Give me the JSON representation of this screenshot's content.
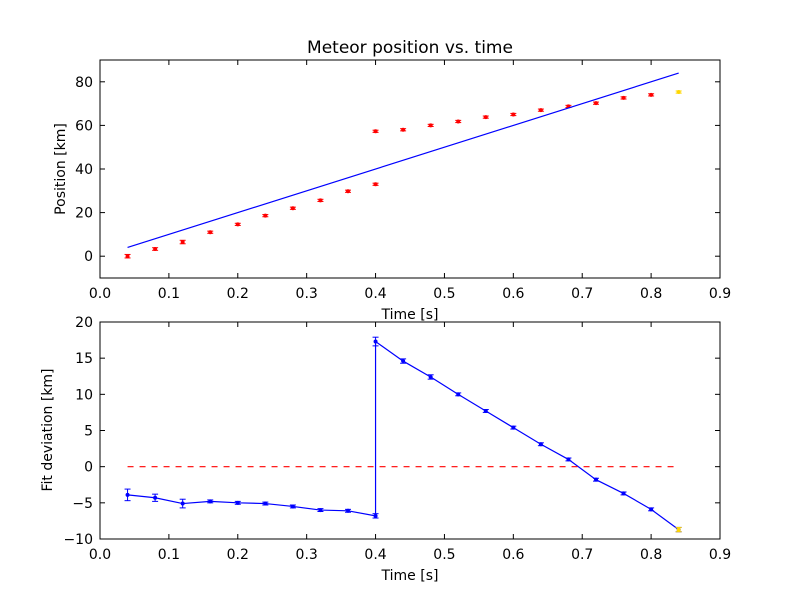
{
  "colors": {
    "frame": "#000000",
    "points": "#ff0000",
    "highlight": "#ffd700",
    "line": "#0000ff",
    "zero_line": "#ff0000"
  },
  "chart_data": [
    {
      "type": "scatter",
      "title": "Meteor position vs. time",
      "xlabel": "Time [s]",
      "ylabel": "Position [km]",
      "xlim": [
        0.0,
        0.9
      ],
      "ylim": [
        -10,
        90
      ],
      "x_ticks": [
        0.0,
        0.1,
        0.2,
        0.3,
        0.4,
        0.5,
        0.6,
        0.7,
        0.8,
        0.9
      ],
      "y_ticks": [
        0,
        20,
        40,
        60,
        80
      ],
      "x_tick_labels": [
        "0.0",
        "0.1",
        "0.2",
        "0.3",
        "0.4",
        "0.5",
        "0.6",
        "0.7",
        "0.8",
        "0.9"
      ],
      "y_tick_labels": [
        "0",
        "20",
        "40",
        "60",
        "80"
      ],
      "grid": false,
      "series": [
        {
          "kind": "points",
          "color": "#ff0000",
          "x": [
            0.04,
            0.08,
            0.12,
            0.16,
            0.2,
            0.24,
            0.28,
            0.32,
            0.36,
            0.4,
            0.4,
            0.44,
            0.48,
            0.52,
            0.56,
            0.6,
            0.64,
            0.68,
            0.72,
            0.76,
            0.8
          ],
          "y": [
            0.0,
            3.3,
            6.5,
            11.0,
            14.6,
            18.6,
            22.0,
            25.6,
            29.8,
            33.0,
            57.3,
            58.0,
            60.0,
            61.8,
            63.8,
            65.0,
            67.0,
            68.7,
            70.2,
            72.6,
            74.0
          ],
          "yerr": [
            0.8,
            0.6,
            0.8,
            0.5,
            0.5,
            0.5,
            0.5,
            0.5,
            0.5,
            0.5,
            0.5,
            0.5,
            0.5,
            0.5,
            0.5,
            0.5,
            0.5,
            0.5,
            0.5,
            0.5,
            0.5
          ]
        },
        {
          "kind": "points",
          "color": "#ffd700",
          "x": [
            0.84
          ],
          "y": [
            75.3
          ],
          "yerr": [
            0.5
          ]
        },
        {
          "kind": "line",
          "color": "#0000ff",
          "x": [
            0.04,
            0.84
          ],
          "y": [
            4.0,
            84.0
          ]
        }
      ]
    },
    {
      "type": "line",
      "title": "",
      "xlabel": "Time [s]",
      "ylabel": "Fit deviation [km]",
      "xlim": [
        0.0,
        0.9
      ],
      "ylim": [
        -10,
        20
      ],
      "x_ticks": [
        0.0,
        0.1,
        0.2,
        0.3,
        0.4,
        0.5,
        0.6,
        0.7,
        0.8,
        0.9
      ],
      "y_ticks": [
        -10,
        -5,
        0,
        5,
        10,
        15,
        20
      ],
      "x_tick_labels": [
        "0.0",
        "0.1",
        "0.2",
        "0.3",
        "0.4",
        "0.5",
        "0.6",
        "0.7",
        "0.8",
        "0.9"
      ],
      "y_tick_labels": [
        "−10",
        "−5",
        "0",
        "5",
        "10",
        "15",
        "20"
      ],
      "grid": false,
      "series": [
        {
          "kind": "line_points",
          "color": "#0000ff",
          "x": [
            0.04,
            0.08,
            0.12,
            0.16,
            0.2,
            0.24,
            0.28,
            0.32,
            0.36,
            0.4,
            0.4,
            0.44,
            0.48,
            0.52,
            0.56,
            0.6,
            0.64,
            0.68,
            0.72,
            0.76,
            0.8,
            0.84
          ],
          "y": [
            -3.9,
            -4.3,
            -5.1,
            -4.8,
            -5.0,
            -5.1,
            -5.5,
            -6.0,
            -6.1,
            -6.8,
            17.3,
            14.6,
            12.4,
            10.0,
            7.7,
            5.4,
            3.1,
            1.0,
            -1.8,
            -3.7,
            -5.9,
            -8.7
          ],
          "yerr": [
            0.8,
            0.5,
            0.6,
            0.2,
            0.2,
            0.2,
            0.2,
            0.2,
            0.2,
            0.3,
            0.6,
            0.3,
            0.3,
            0.2,
            0.2,
            0.2,
            0.2,
            0.2,
            0.2,
            0.2,
            0.2,
            0.3
          ]
        },
        {
          "kind": "points",
          "color": "#ffd700",
          "x": [
            0.84
          ],
          "y": [
            -8.7
          ],
          "yerr": [
            0.3
          ]
        },
        {
          "kind": "dashed_line",
          "color": "#ff0000",
          "x": [
            0.04,
            0.84
          ],
          "y": [
            0,
            0
          ]
        }
      ]
    }
  ]
}
